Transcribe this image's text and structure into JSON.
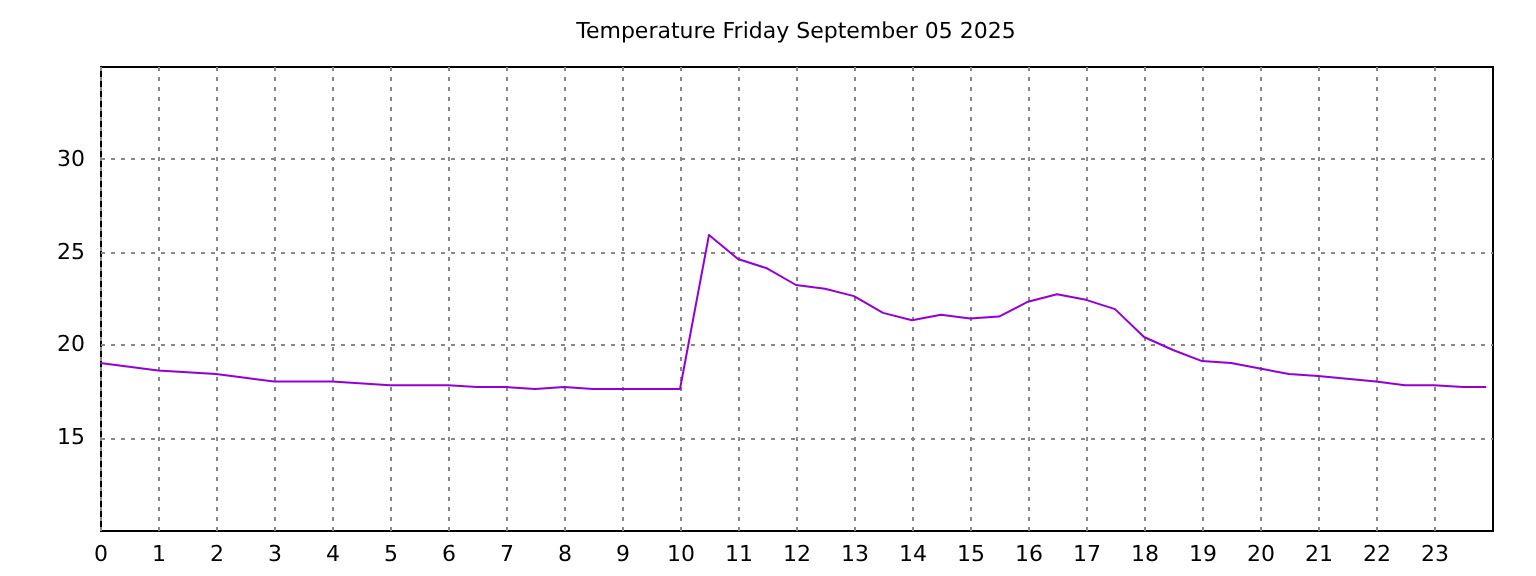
{
  "chart_data": {
    "type": "line",
    "title": "Temperature Friday September 05 2025",
    "x": [
      0,
      1,
      2,
      2.5,
      3,
      4,
      5,
      6,
      6.5,
      7,
      7.5,
      8,
      8.5,
      10,
      10.5,
      11,
      11.5,
      12,
      12.5,
      13,
      13.5,
      14,
      14.5,
      15,
      15.5,
      16,
      16.5,
      17,
      17.5,
      18,
      18.5,
      19,
      19.5,
      20,
      20.5,
      21,
      22,
      22.5,
      23,
      23.5,
      23.9
    ],
    "series": [
      {
        "color": "#9400d3",
        "values": [
          19.0,
          18.6,
          18.4,
          18.2,
          18.0,
          18.0,
          17.8,
          17.8,
          17.7,
          17.7,
          17.6,
          17.7,
          17.6,
          17.6,
          25.9,
          24.6,
          24.1,
          23.2,
          23.0,
          22.6,
          21.7,
          21.3,
          21.6,
          21.4,
          21.5,
          22.3,
          22.7,
          22.4,
          21.9,
          20.4,
          19.7,
          19.1,
          19.0,
          18.7,
          18.4,
          18.3,
          18.0,
          17.8,
          17.8,
          17.7,
          17.7
        ]
      }
    ],
    "xlim": [
      0,
      24
    ],
    "xticks": [
      0,
      1,
      2,
      3,
      4,
      5,
      6,
      7,
      8,
      9,
      10,
      11,
      12,
      13,
      14,
      15,
      16,
      17,
      18,
      19,
      20,
      21,
      22,
      23
    ],
    "ylim": [
      10,
      35
    ],
    "yticks": [
      15,
      20,
      25,
      30
    ],
    "grid": true,
    "marker": "none",
    "line_style": "solid"
  }
}
